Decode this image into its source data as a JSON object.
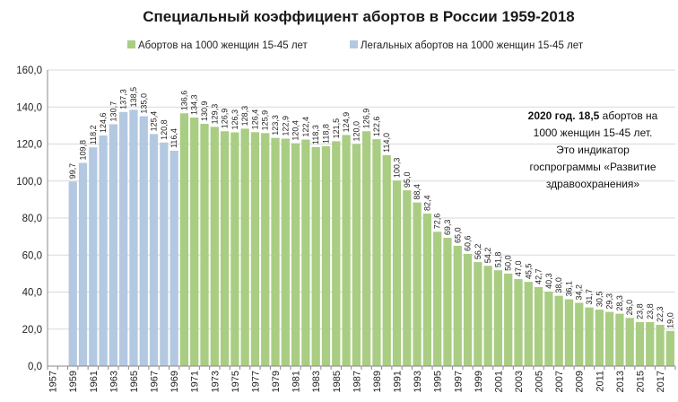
{
  "chart_data": {
    "type": "bar",
    "title": "Специальный коэффициент абортов в России 1959-2018",
    "legend": [
      {
        "key": "total",
        "label": "Абортов на 1000 женщин 15-45 лет",
        "color": "#a9cd82"
      },
      {
        "key": "legal",
        "label": "Легальных абортов на 1000 женщин  15-45 лет",
        "color": "#b3c8e1"
      }
    ],
    "ylim": [
      0,
      160
    ],
    "yticks": [
      "0,0",
      "20,0",
      "40,0",
      "60,0",
      "80,0",
      "100,0",
      "120,0",
      "140,0",
      "160,0"
    ],
    "x_tick_labels": [
      "1957",
      "1959",
      "1961",
      "1963",
      "1965",
      "1967",
      "1969",
      "1971",
      "1973",
      "1975",
      "1977",
      "1979",
      "1981",
      "1983",
      "1985",
      "1987",
      "1989",
      "1991",
      "1993",
      "1995",
      "1997",
      "1999",
      "2001",
      "2003",
      "2005",
      "2007",
      "2009",
      "2011",
      "2013",
      "2015",
      "2017"
    ],
    "x_first_year": 1957,
    "x_last_year": 2018,
    "grid": true,
    "series": [
      {
        "name": "Легальных абортов на 1000 женщин  15-45 лет",
        "key": "legal",
        "x": [
          1959,
          1960,
          1961,
          1962,
          1963,
          1964,
          1965,
          1966,
          1967,
          1968,
          1969
        ],
        "values": [
          99.7,
          109.8,
          118.2,
          124.6,
          130.7,
          137.3,
          138.5,
          135.0,
          125.4,
          120.8,
          116.4
        ],
        "labels": [
          "99,7",
          "109,8",
          "118,2",
          "124,6",
          "130,7",
          "137,3",
          "138,5",
          "135,0",
          "125,4",
          "120,8",
          "116,4"
        ]
      },
      {
        "name": "Абортов на 1000 женщин 15-45 лет",
        "key": "total",
        "x": [
          1970,
          1971,
          1972,
          1973,
          1974,
          1975,
          1976,
          1977,
          1978,
          1979,
          1980,
          1981,
          1982,
          1983,
          1984,
          1985,
          1986,
          1987,
          1988,
          1989,
          1990,
          1991,
          1992,
          1993,
          1994,
          1995,
          1996,
          1997,
          1998,
          1999,
          2000,
          2001,
          2002,
          2003,
          2004,
          2005,
          2006,
          2007,
          2008,
          2009,
          2010,
          2011,
          2012,
          2013,
          2014,
          2015,
          2016,
          2017,
          2018
        ],
        "values": [
          136.6,
          134.3,
          130.9,
          129.3,
          126.9,
          126.3,
          128.3,
          126.4,
          125.9,
          123.3,
          122.9,
          120.4,
          122.4,
          118.3,
          118.8,
          121.5,
          124.9,
          120.0,
          126.9,
          122.6,
          114.0,
          100.3,
          95.0,
          88.4,
          82.4,
          72.6,
          69.3,
          65.0,
          60.6,
          56.2,
          54.2,
          51.8,
          50.0,
          47.0,
          45.5,
          42.7,
          40.3,
          38.0,
          36.1,
          34.2,
          31.7,
          30.5,
          29.3,
          28.3,
          26.0,
          23.8,
          23.8,
          22.3,
          19.0
        ],
        "labels": [
          "136,6",
          "134,3",
          "130,9",
          "129,3",
          "126,9",
          "126,3",
          "128,3",
          "126,4",
          "125,9",
          "123,3",
          "122,9",
          "120,4",
          "122,4",
          "118,3",
          "118,8",
          "121,5",
          "124,9",
          "120,0",
          "126,9",
          "122,6",
          "114,0",
          "100,3",
          "95,0",
          "88,4",
          "82,4",
          "72,6",
          "69,3",
          "65,0",
          "60,6",
          "56,2",
          "54,2",
          "51,8",
          "50,0",
          "47,0",
          "45,5",
          "42,7",
          "40,3",
          "38,0",
          "36,1",
          "34,2",
          "31,7",
          "30,5",
          "29,3",
          "28,3",
          "26,0",
          "23,8",
          "23,8",
          "22,3",
          "19,0"
        ]
      }
    ],
    "annotation": {
      "bold": "2020 год. 18,5",
      "rest": " абортов на 1000 женщин  15-45 лет. Это индикатор госпрограммы «Развитие здравоохранения»"
    }
  }
}
